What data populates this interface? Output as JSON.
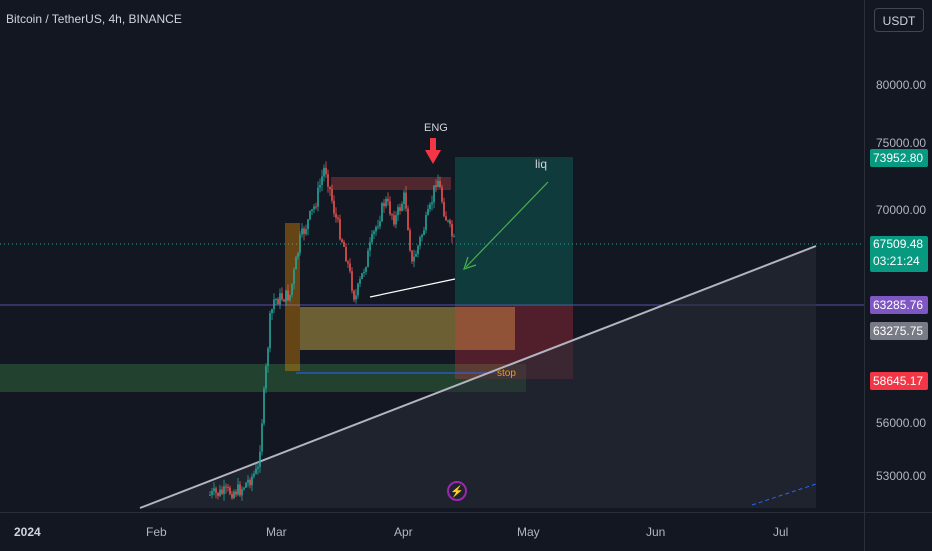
{
  "header": {
    "symbol_title": "Bitcoin / TetherUS, 4h, BINANCE"
  },
  "price_axis": {
    "currency": "USDT",
    "ticks": [
      "80000.00",
      "75000.00",
      "70000.00",
      "56000.00",
      "53000.00"
    ]
  },
  "price_labels": {
    "target": "73952.80",
    "last": "67509.48",
    "countdown": "03:21:24",
    "line_level": "63285.76",
    "entry": "63275.75",
    "stop": "58645.17"
  },
  "time_axis": {
    "year": "2024",
    "months": [
      "Feb",
      "Mar",
      "Apr",
      "May",
      "Jun",
      "Jul"
    ]
  },
  "annotations": {
    "eng": "ENG",
    "liq": "liq",
    "stop": "stop"
  },
  "colors": {
    "background": "#131722",
    "up_candle": "#26a69a",
    "down_candle": "#ef5350",
    "target_label": "#089981",
    "stop_label": "#f23645",
    "line_level_label": "#7e57c2",
    "entry_label": "#787b86"
  },
  "icons": {
    "logo": "bolt-icon"
  }
}
